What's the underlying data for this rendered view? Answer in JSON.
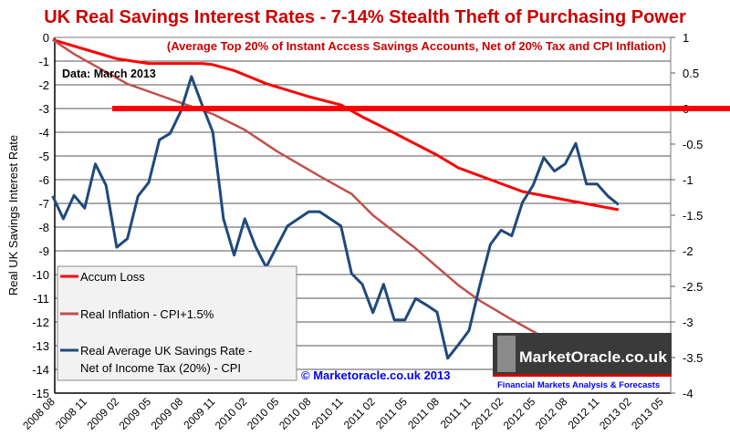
{
  "chart_data": {
    "type": "line",
    "title": "UK Real Savings Interest Rates - 7-14% Stealth Theft of Purchasing Power",
    "subtitle": "(Average  Top 20% of Instant Access  Savings Accounts, Net of 20% Tax and CPI Inflation)",
    "annotation": "Data: March 2013",
    "copyright": "© Marketoracle.co.uk  2013",
    "logo": {
      "name": "MarketOracle.co.uk",
      "tagline": "Financial Markets Analysis & Forecasts"
    },
    "ylabel": "Real UK Savings Interest Rate",
    "ylim_left": [
      -15,
      0
    ],
    "yticks_left": [
      "0",
      "-1",
      "-2",
      "-3",
      "-4",
      "-5",
      "-6",
      "-7",
      "-8",
      "-9",
      "-10",
      "-11",
      "-12",
      "-13",
      "-14",
      "-15"
    ],
    "ylim_right": [
      -4,
      1
    ],
    "yticks_right": [
      "1",
      "0.5",
      "0",
      "-0.5",
      "-1",
      "-1.5",
      "-2",
      "-2.5",
      "-3",
      "-3.5",
      "-4"
    ],
    "xticks": [
      "2008 08",
      "2008 11",
      "2009 02",
      "2009 05",
      "2009 08",
      "2009 11",
      "2010 02",
      "2010 05",
      "2010 08",
      "2010 11",
      "2011 02",
      "2011 05",
      "2011 08",
      "2011 11",
      "2012 02",
      "2012 05",
      "2012 08",
      "2012 11",
      "2013 02",
      "2013 05"
    ],
    "grid": true,
    "legend_position": "bottom-left",
    "reference_line": {
      "axis": "right",
      "y": 0,
      "from": "2009 02",
      "color": "#ff0000"
    },
    "series": [
      {
        "name": "Accum Loss",
        "axis": "left",
        "color": "#ff0000",
        "x": [
          "2008 08",
          "2008 11",
          "2009 02",
          "2009 05",
          "2009 06",
          "2009 09",
          "2009 10",
          "2009 11",
          "2010 01",
          "2010 04",
          "2010 08",
          "2010 11",
          "2011 01",
          "2011 03",
          "2011 08",
          "2011 10",
          "2012 01",
          "2012 04",
          "2012 08",
          "2013 01"
        ],
        "values": [
          -0.1,
          -0.5,
          -0.9,
          -1.1,
          -1.1,
          -1.1,
          -1.1,
          -1.15,
          -1.4,
          -1.95,
          -2.5,
          -2.85,
          -3.35,
          -3.8,
          -4.96,
          -5.5,
          -6.0,
          -6.5,
          -6.85,
          -7.27
        ]
      },
      {
        "name": "Real Inflation - CPI+1.5%",
        "axis": "left",
        "color": "#c0504d",
        "x": [
          "2008 08",
          "2008 10",
          "2009 03",
          "2009 07",
          "2009 11",
          "2010 02",
          "2010 05",
          "2010 09",
          "2010 12",
          "2011 02",
          "2011 06",
          "2011 10",
          "2011 12",
          "2012 03",
          "2012 06"
        ],
        "values": [
          -0.1,
          -0.7,
          -1.96,
          -2.6,
          -3.23,
          -3.9,
          -4.8,
          -5.85,
          -6.6,
          -7.5,
          -8.9,
          -10.45,
          -11.1,
          -11.9,
          -12.65
        ]
      },
      {
        "name": "Real Average UK Savings Rate - Net of Income Tax (20%) - CPI",
        "axis": "right",
        "color": "#1f497d",
        "x_start": "2008 08",
        "values": [
          -1.23,
          -1.55,
          -1.22,
          -1.4,
          -0.78,
          -1.08,
          -1.95,
          -1.83,
          -1.23,
          -1.04,
          -0.44,
          -0.35,
          -0.04,
          0.45,
          0.05,
          -0.33,
          -1.55,
          -2.06,
          -1.55,
          -1.94,
          -2.23,
          -1.94,
          -1.65,
          -1.55,
          -1.45,
          -1.45,
          -1.55,
          -1.65,
          -2.32,
          -2.47,
          -2.87,
          -2.47,
          -2.97,
          -2.97,
          -2.67,
          -2.76,
          -2.86,
          -3.51,
          -3.32,
          -3.12,
          -2.49,
          -1.91,
          -1.71,
          -1.79,
          -1.32,
          -1.08,
          -0.69,
          -0.88,
          -0.78,
          -0.49,
          -1.06,
          -1.06,
          -1.23,
          -1.35
        ]
      }
    ],
    "legend": [
      "Accum Loss",
      "Real Inflation - CPI+1.5%",
      "Real Average UK Savings Rate -",
      "Net of Income Tax (20%) - CPI"
    ]
  }
}
